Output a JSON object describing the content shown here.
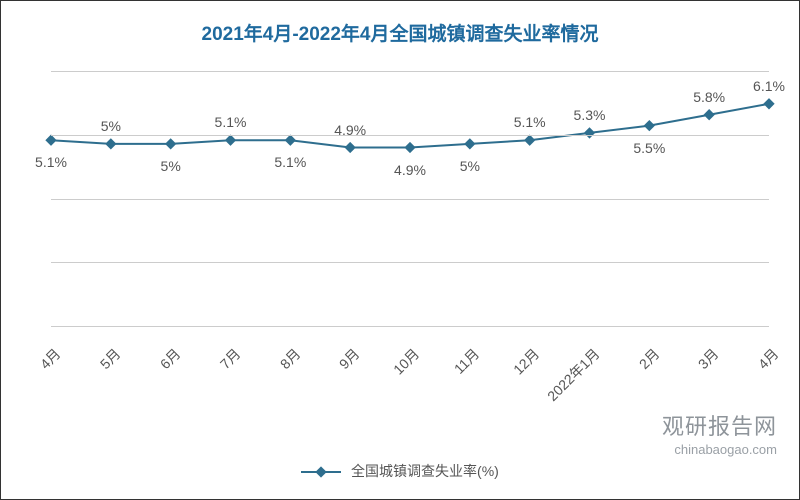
{
  "chart": {
    "type": "line",
    "title": "2021年4月-2022年4月全国城镇调查失业率情况",
    "title_color": "#1f6a9e",
    "title_fontsize": 19,
    "background_color": "#ffffff",
    "border_color": "#333333",
    "series_name": "全国城镇调查失业率(%)",
    "categories": [
      "4月",
      "5月",
      "6月",
      "7月",
      "8月",
      "9月",
      "10月",
      "11月",
      "12月",
      "2022年1月",
      "2月",
      "3月",
      "4月"
    ],
    "values": [
      5.1,
      5.0,
      5.0,
      5.1,
      5.1,
      4.9,
      4.9,
      5.0,
      5.1,
      5.3,
      5.5,
      5.8,
      6.1
    ],
    "display_labels": [
      "5.1%",
      "5%",
      "5%",
      "5.1%",
      "5.1%",
      "4.9%",
      "4.9%",
      "5%",
      "5.1%",
      "5.3%",
      "5.5%",
      "5.8%",
      "6.1%"
    ],
    "label_positions": [
      "below",
      "above",
      "below",
      "above",
      "below",
      "above",
      "below",
      "below",
      "above",
      "above",
      "below",
      "above",
      "above"
    ],
    "label_fontsize": 14,
    "label_color": "#555555",
    "line_color": "#2e6e8e",
    "line_width": 2,
    "marker_style": "diamond",
    "marker_size": 8,
    "grid_color": "#cccccc",
    "grid_line_count": 5,
    "ylim": [
      0,
      7
    ],
    "x_label_rotation": -45,
    "x_label_fontsize": 14,
    "x_label_color": "#555555",
    "legend_position": "bottom-center",
    "legend_fontsize": 14,
    "legend_color": "#555555"
  },
  "watermark": {
    "brand": "观研报告网",
    "url": "chinabaogao.com",
    "color": "#8e949a",
    "brand_fontsize": 22,
    "url_fontsize": 13
  }
}
